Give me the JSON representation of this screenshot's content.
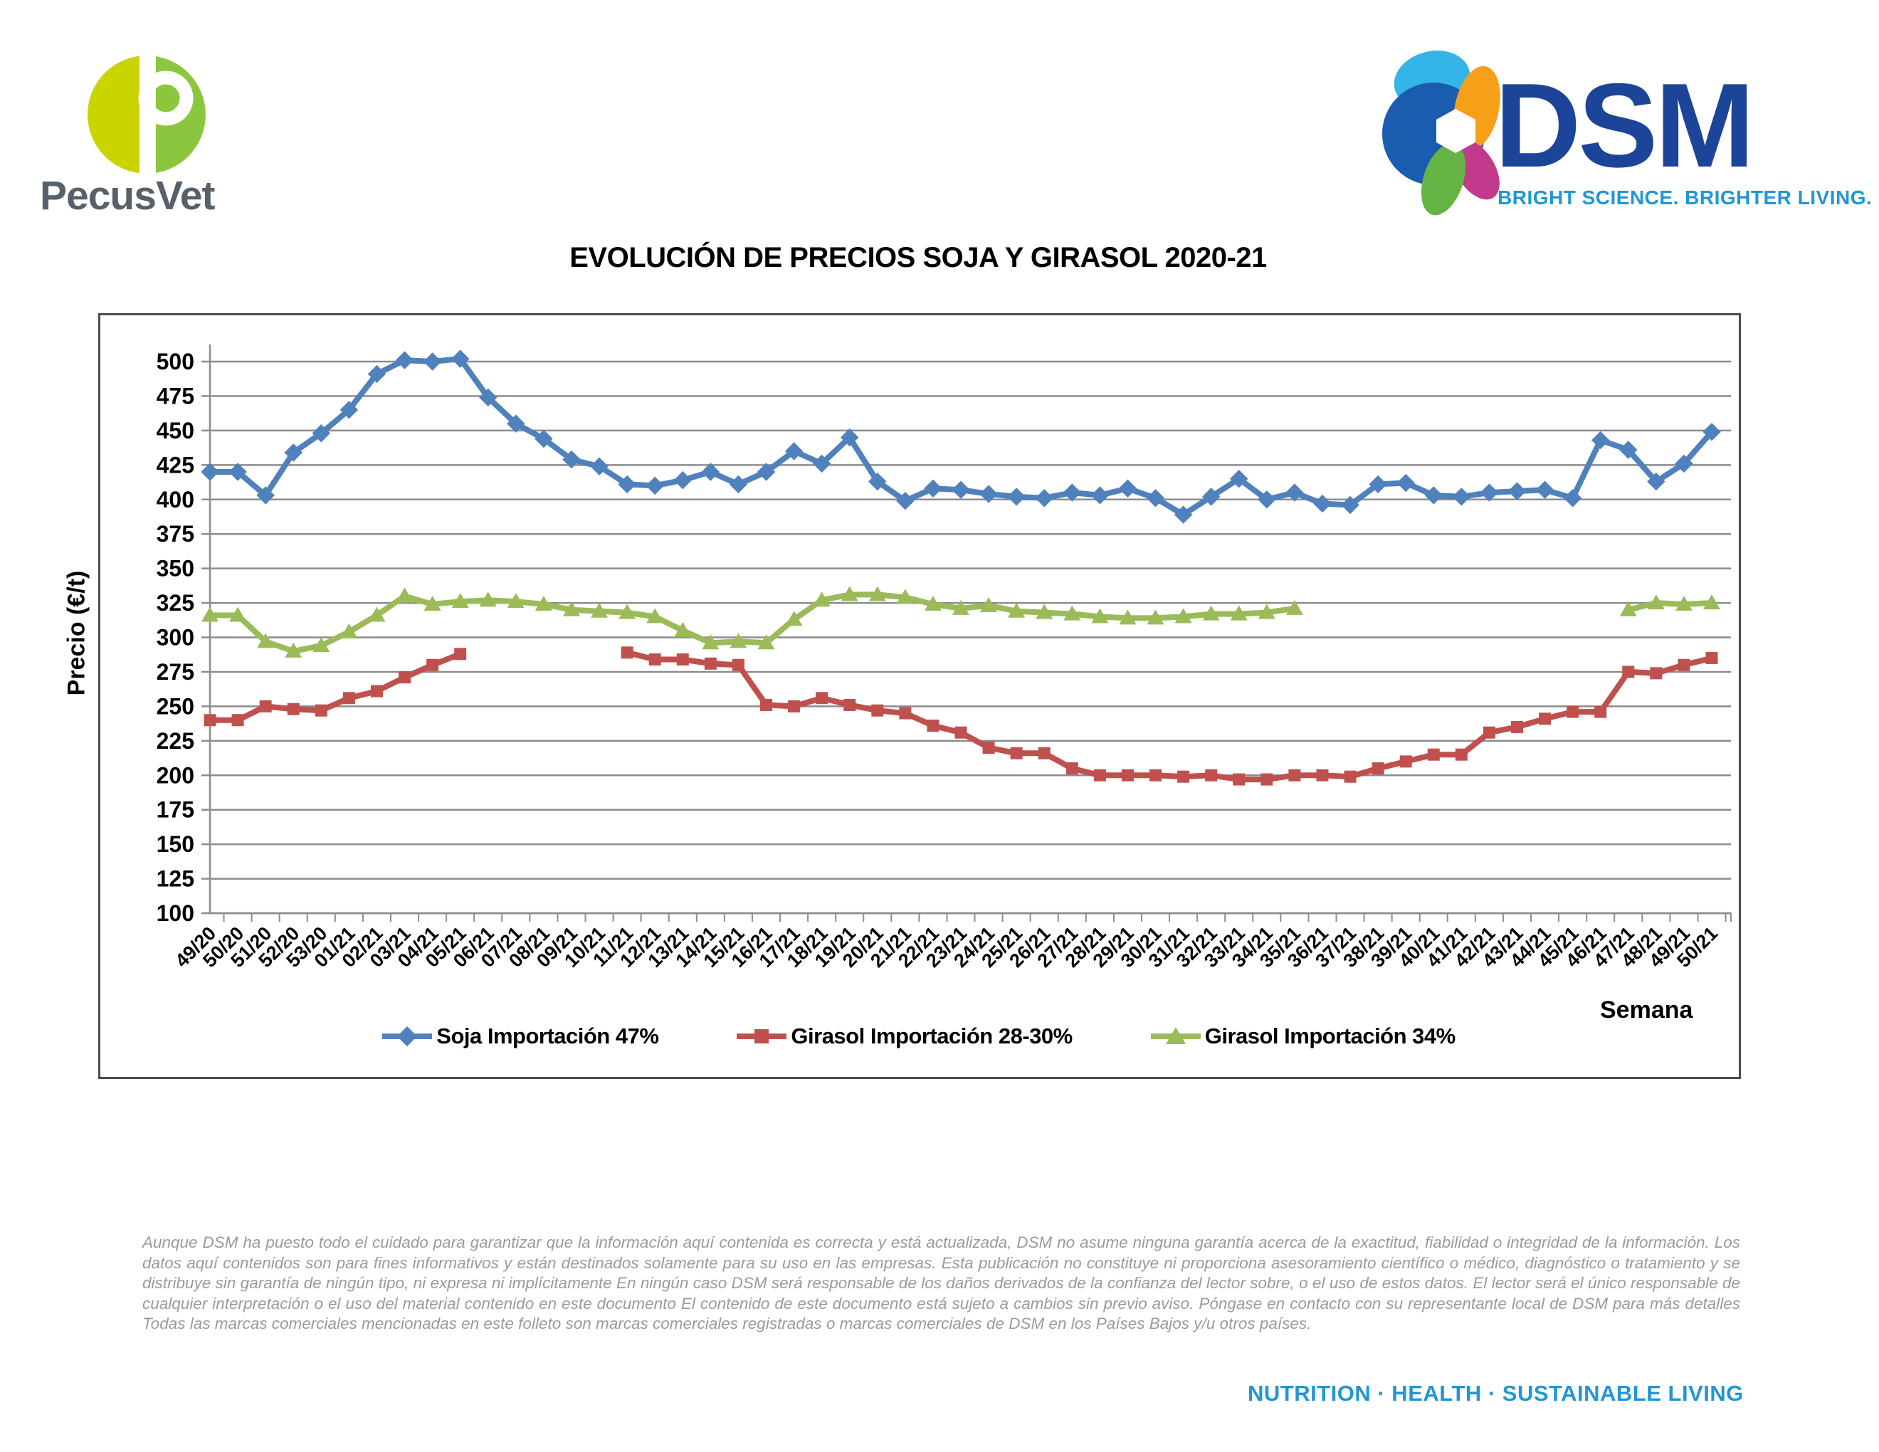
{
  "header": {
    "pecusvet_wordmark": "PecusVet",
    "dsm_wordmark": "DSM",
    "dsm_tagline": "BRIGHT SCIENCE. BRIGHTER LIVING."
  },
  "colors": {
    "pecusvet_yellow_green": "#C9D400",
    "pecusvet_green": "#8CC63E",
    "pecusvet_text": "#57616C",
    "dsm_blue": "#1C4499",
    "dsm_tagline_blue": "#2196D3",
    "soja_blue": "#4F81BD",
    "girasol_red": "#C0504D",
    "girasol_green": "#9BBB59",
    "gridline_gray": "#8C8C8C",
    "chart_border_gray": "#4D4D4D",
    "disclaimer_gray": "#9A9A9A"
  },
  "chart_data": {
    "type": "line",
    "title": "EVOLUCIÓN DE PRECIOS SOJA Y GIRASOL 2020-21",
    "xlabel": "Semana",
    "ylabel": "Precio (€/t)",
    "ylim": [
      100,
      500
    ],
    "ytick_step": 25,
    "grid": true,
    "legend_position": "bottom",
    "categories": [
      "49/20",
      "50/20",
      "51/20",
      "52/20",
      "53/20",
      "01/21",
      "02/21",
      "03/21",
      "04/21",
      "05/21",
      "06/21",
      "07/21",
      "08/21",
      "09/21",
      "10/21",
      "11/21",
      "12/21",
      "13/21",
      "14/21",
      "15/21",
      "16/21",
      "17/21",
      "18/21",
      "19/21",
      "20/21",
      "21/21",
      "22/21",
      "23/21",
      "24/21",
      "25/21",
      "26/21",
      "27/21",
      "28/21",
      "29/21",
      "30/21",
      "31/21",
      "32/21",
      "33/21",
      "34/21",
      "35/21",
      "36/21",
      "37/21",
      "38/21",
      "39/21",
      "40/21",
      "41/21",
      "42/21",
      "43/21",
      "44/21",
      "45/21",
      "46/21",
      "47/21",
      "48/21",
      "49/21",
      "50/21"
    ],
    "series": [
      {
        "name": "Soja Importación 47%",
        "color": "#4F81BD",
        "marker": "diamond",
        "values": [
          420,
          420,
          403,
          434,
          448,
          465,
          491,
          501,
          500,
          502,
          474,
          455,
          444,
          429,
          424,
          411,
          410,
          414,
          420,
          411,
          420,
          435,
          426,
          445,
          413,
          399,
          408,
          407,
          404,
          402,
          401,
          405,
          403,
          408,
          401,
          389,
          402,
          415,
          400,
          405,
          397,
          396,
          411,
          412,
          403,
          402,
          405,
          406,
          407,
          401,
          443,
          436,
          413,
          426,
          449
        ]
      },
      {
        "name": "Girasol Importación 28-30%",
        "color": "#C0504D",
        "marker": "square",
        "values": [
          240,
          240,
          250,
          248,
          247,
          256,
          261,
          271,
          280,
          288,
          null,
          null,
          null,
          null,
          null,
          289,
          284,
          284,
          281,
          280,
          251,
          250,
          256,
          251,
          247,
          245,
          236,
          231,
          220,
          216,
          216,
          205,
          200,
          200,
          200,
          199,
          200,
          197,
          197,
          200,
          200,
          199,
          205,
          210,
          215,
          215,
          231,
          235,
          241,
          246,
          246,
          275,
          274,
          280,
          285
        ]
      },
      {
        "name": "Girasol Importación 34%",
        "color": "#9BBB59",
        "marker": "triangle",
        "values": [
          316,
          316,
          297,
          290,
          294,
          304,
          316,
          330,
          324,
          326,
          327,
          326,
          324,
          320,
          319,
          318,
          315,
          305,
          296,
          297,
          296,
          313,
          327,
          331,
          331,
          329,
          324,
          321,
          323,
          319,
          318,
          317,
          315,
          314,
          314,
          315,
          317,
          317,
          318,
          321,
          null,
          null,
          null,
          null,
          null,
          null,
          null,
          null,
          null,
          null,
          null,
          320,
          325,
          324,
          325
        ]
      }
    ]
  },
  "footer": {
    "disclaimer": "Aunque DSM ha puesto todo el cuidado para garantizar que la información aquí contenida es correcta y está actualizada, DSM no asume ninguna garantía acerca de la exactitud, fiabilidad o integridad de la información. Los datos aquí contenidos son para fines informativos y están destinados solamente para su uso en las empresas. Esta publicación no constituye ni proporciona asesoramiento científico o médico, diagnóstico o tratamiento y se distribuye sin garantía de ningún tipo, ni expresa ni implícitamente En ningún caso DSM será responsable de los daños derivados de la confianza del lector sobre, o el uso de estos datos. El lector será el único responsable de cualquier interpretación o el uso del material contenido en este documento El contenido de este documento está sujeto a cambios sin previo aviso. Póngase en contacto con su representante local de DSM para más detalles Todas las marcas comerciales mencionadas en este folleto son marcas comerciales registradas o marcas comerciales de DSM en los Países Bajos y/u otros países.",
    "tagline": "NUTRITION · HEALTH · SUSTAINABLE LIVING"
  }
}
